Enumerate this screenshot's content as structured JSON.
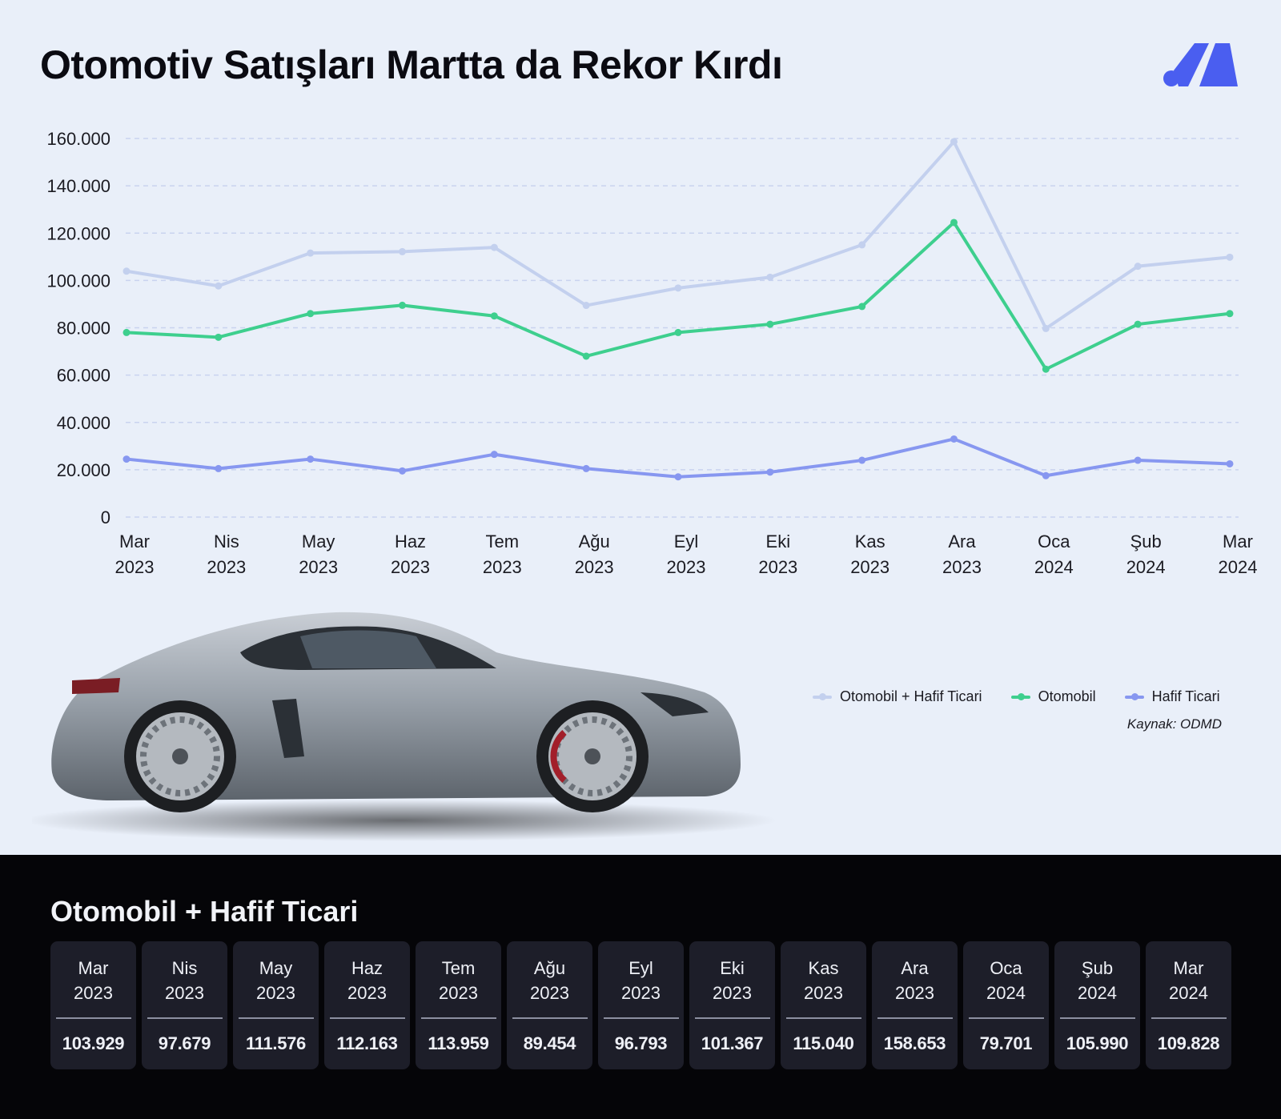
{
  "title": "Otomotiv Satışları Martta da Rekor Kırdı",
  "colors": {
    "background": "#e9eff9",
    "combined": "#c3d0ee",
    "otomobil": "#3ecf8e",
    "hafif_ticari": "#8797f0",
    "logo": "#4a5ef0",
    "grid": "#c9d3ef"
  },
  "chart_data": {
    "type": "line",
    "categories": [
      [
        "Mar",
        "2023"
      ],
      [
        "Nis",
        "2023"
      ],
      [
        "May",
        "2023"
      ],
      [
        "Haz",
        "2023"
      ],
      [
        "Tem",
        "2023"
      ],
      [
        "Ağu",
        "2023"
      ],
      [
        "Eyl",
        "2023"
      ],
      [
        "Eki",
        "2023"
      ],
      [
        "Kas",
        "2023"
      ],
      [
        "Ara",
        "2023"
      ],
      [
        "Oca",
        "2024"
      ],
      [
        "Şub",
        "2024"
      ],
      [
        "Mar",
        "2024"
      ]
    ],
    "series": [
      {
        "name": "Otomobil + Hafif Ticari",
        "color": "#c3d0ee",
        "values": [
          103929,
          97679,
          111576,
          112163,
          113959,
          89454,
          96793,
          101367,
          115040,
          158653,
          79701,
          105990,
          109828
        ]
      },
      {
        "name": "Otomobil",
        "color": "#3ecf8e",
        "values": [
          78000,
          76000,
          86000,
          89500,
          85000,
          68000,
          78000,
          81500,
          89000,
          124500,
          62500,
          81500,
          86000
        ]
      },
      {
        "name": "Hafif Ticari",
        "color": "#8797f0",
        "values": [
          24500,
          20500,
          24500,
          19500,
          26500,
          20500,
          17000,
          19000,
          24000,
          33000,
          17500,
          24000,
          22500
        ]
      }
    ],
    "yticks": [
      "160.000",
      "140.000",
      "120.000",
      "100.000",
      "80.000",
      "60.000",
      "40.000",
      "20.000",
      "0"
    ],
    "ylim": [
      0,
      160000
    ],
    "grid": true,
    "legend_position": "bottom-right"
  },
  "legend": {
    "items": [
      "Otomobil + Hafif Ticari",
      "Otomobil",
      "Hafif Ticari"
    ]
  },
  "source": "Kaynak: ODMD",
  "table": {
    "title": "Otomobil + Hafif Ticari",
    "cards": [
      {
        "month": "Mar",
        "year": "2023",
        "value": "103.929"
      },
      {
        "month": "Nis",
        "year": "2023",
        "value": "97.679"
      },
      {
        "month": "May",
        "year": "2023",
        "value": "111.576"
      },
      {
        "month": "Haz",
        "year": "2023",
        "value": "112.163"
      },
      {
        "month": "Tem",
        "year": "2023",
        "value": "113.959"
      },
      {
        "month": "Ağu",
        "year": "2023",
        "value": "89.454"
      },
      {
        "month": "Eyl",
        "year": "2023",
        "value": "96.793"
      },
      {
        "month": "Eki",
        "year": "2023",
        "value": "101.367"
      },
      {
        "month": "Kas",
        "year": "2023",
        "value": "115.040"
      },
      {
        "month": "Ara",
        "year": "2023",
        "value": "158.653"
      },
      {
        "month": "Oca",
        "year": "2024",
        "value": "79.701"
      },
      {
        "month": "Şub",
        "year": "2024",
        "value": "105.990"
      },
      {
        "month": "Mar",
        "year": "2024",
        "value": "109.828"
      }
    ]
  }
}
